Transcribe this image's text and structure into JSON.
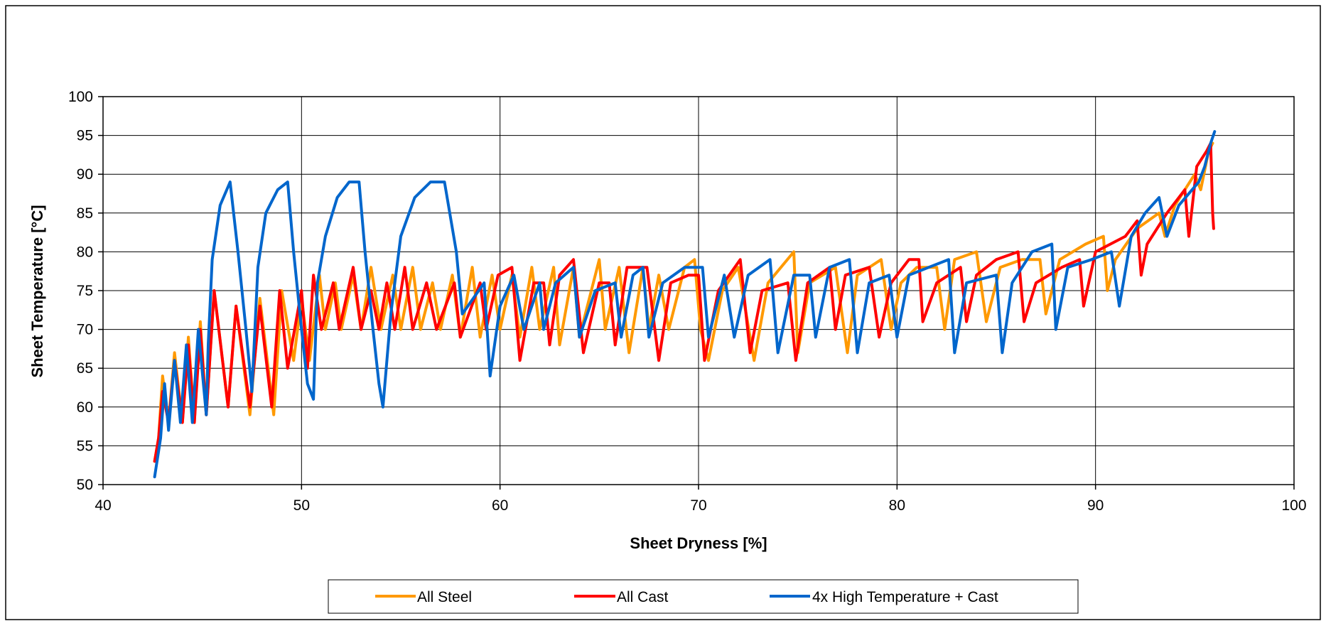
{
  "chart_data": {
    "type": "line",
    "title": "",
    "xlabel": "Sheet Dryness [%]",
    "ylabel": "Sheet Temperature [°C]",
    "xlim": [
      40,
      100
    ],
    "ylim": [
      50,
      100
    ],
    "x_ticks": [
      40,
      50,
      60,
      70,
      80,
      90,
      100
    ],
    "y_ticks": [
      50,
      55,
      60,
      65,
      70,
      75,
      80,
      85,
      90,
      95,
      100
    ],
    "grid": true,
    "legend_position": "bottom",
    "series": [
      {
        "name": "All Steel",
        "color": "#FF9900",
        "points": [
          [
            42.6,
            53
          ],
          [
            42.8,
            56
          ],
          [
            43.0,
            64
          ],
          [
            43.3,
            58
          ],
          [
            43.6,
            67
          ],
          [
            44.0,
            58
          ],
          [
            44.3,
            69
          ],
          [
            44.6,
            58
          ],
          [
            44.9,
            71
          ],
          [
            45.2,
            59
          ],
          [
            45.6,
            75
          ],
          [
            46.3,
            60
          ],
          [
            46.7,
            73
          ],
          [
            47.4,
            59
          ],
          [
            47.9,
            74
          ],
          [
            48.6,
            59
          ],
          [
            49.0,
            75
          ],
          [
            49.6,
            66
          ],
          [
            50.0,
            74
          ],
          [
            50.4,
            66
          ],
          [
            50.9,
            77
          ],
          [
            51.2,
            70
          ],
          [
            51.7,
            76
          ],
          [
            52.0,
            70
          ],
          [
            52.6,
            77
          ],
          [
            53.0,
            70
          ],
          [
            53.5,
            78
          ],
          [
            54.0,
            70
          ],
          [
            54.6,
            77
          ],
          [
            55.0,
            70
          ],
          [
            55.6,
            78
          ],
          [
            56.0,
            70
          ],
          [
            56.6,
            76
          ],
          [
            57.0,
            70
          ],
          [
            57.6,
            77
          ],
          [
            58.0,
            69
          ],
          [
            58.6,
            78
          ],
          [
            59.0,
            69
          ],
          [
            59.6,
            77
          ],
          [
            60.0,
            70
          ],
          [
            60.6,
            77
          ],
          [
            61.0,
            69
          ],
          [
            61.6,
            78
          ],
          [
            62.0,
            70
          ],
          [
            62.7,
            78
          ],
          [
            63.0,
            68
          ],
          [
            63.7,
            78
          ],
          [
            64.0,
            69
          ],
          [
            65.0,
            79
          ],
          [
            65.3,
            70
          ],
          [
            66.0,
            78
          ],
          [
            66.5,
            67
          ],
          [
            67.2,
            78
          ],
          [
            67.5,
            70
          ],
          [
            68.0,
            77
          ],
          [
            68.5,
            70
          ],
          [
            69.3,
            78
          ],
          [
            69.8,
            79
          ],
          [
            70.1,
            70
          ],
          [
            70.5,
            66
          ],
          [
            71.2,
            75
          ],
          [
            72.0,
            78
          ],
          [
            72.8,
            66
          ],
          [
            73.5,
            76
          ],
          [
            74.8,
            80
          ],
          [
            75.0,
            67
          ],
          [
            75.6,
            76
          ],
          [
            76.9,
            78
          ],
          [
            77.5,
            67
          ],
          [
            78.0,
            77
          ],
          [
            79.2,
            79
          ],
          [
            79.7,
            70
          ],
          [
            80.2,
            76
          ],
          [
            81.0,
            78
          ],
          [
            82.0,
            78
          ],
          [
            82.4,
            70
          ],
          [
            82.9,
            79
          ],
          [
            84.0,
            80
          ],
          [
            84.5,
            71
          ],
          [
            85.2,
            78
          ],
          [
            86.3,
            79
          ],
          [
            87.2,
            79
          ],
          [
            87.5,
            72
          ],
          [
            88.2,
            79
          ],
          [
            89.5,
            81
          ],
          [
            90.4,
            82
          ],
          [
            90.6,
            75
          ],
          [
            91.0,
            79
          ],
          [
            92.1,
            83
          ],
          [
            93.2,
            85
          ],
          [
            93.5,
            82
          ],
          [
            94.0,
            86
          ],
          [
            95.0,
            90
          ],
          [
            95.3,
            88
          ],
          [
            95.7,
            93
          ],
          [
            95.9,
            94
          ]
        ]
      },
      {
        "name": "All Cast",
        "color": "#FF0000",
        "points": [
          [
            42.6,
            53
          ],
          [
            42.8,
            56
          ],
          [
            43.0,
            62
          ],
          [
            43.3,
            58
          ],
          [
            43.6,
            66
          ],
          [
            44.0,
            58
          ],
          [
            44.3,
            68
          ],
          [
            44.6,
            58
          ],
          [
            44.9,
            70
          ],
          [
            45.2,
            59
          ],
          [
            45.6,
            75
          ],
          [
            46.3,
            60
          ],
          [
            46.7,
            73
          ],
          [
            47.4,
            60
          ],
          [
            47.9,
            73
          ],
          [
            48.5,
            60
          ],
          [
            48.9,
            75
          ],
          [
            49.3,
            65
          ],
          [
            50.0,
            75
          ],
          [
            50.3,
            65
          ],
          [
            50.6,
            77
          ],
          [
            51.0,
            70
          ],
          [
            51.6,
            76
          ],
          [
            51.9,
            70
          ],
          [
            52.6,
            78
          ],
          [
            53.0,
            70
          ],
          [
            53.5,
            75
          ],
          [
            53.9,
            70
          ],
          [
            54.3,
            76
          ],
          [
            54.7,
            70
          ],
          [
            55.2,
            78
          ],
          [
            55.6,
            70
          ],
          [
            56.3,
            76
          ],
          [
            56.8,
            70
          ],
          [
            57.7,
            76
          ],
          [
            58.0,
            69
          ],
          [
            59.0,
            76
          ],
          [
            59.3,
            70
          ],
          [
            59.9,
            77
          ],
          [
            60.6,
            78
          ],
          [
            61.0,
            66
          ],
          [
            61.7,
            76
          ],
          [
            62.2,
            76
          ],
          [
            62.5,
            68
          ],
          [
            63.0,
            77
          ],
          [
            63.7,
            79
          ],
          [
            64.2,
            67
          ],
          [
            65.0,
            76
          ],
          [
            65.5,
            76
          ],
          [
            65.8,
            68
          ],
          [
            66.4,
            78
          ],
          [
            67.4,
            78
          ],
          [
            68.0,
            66
          ],
          [
            68.6,
            76
          ],
          [
            69.5,
            77
          ],
          [
            70.0,
            77
          ],
          [
            70.3,
            66
          ],
          [
            71.0,
            75
          ],
          [
            72.1,
            79
          ],
          [
            72.6,
            67
          ],
          [
            73.2,
            75
          ],
          [
            74.5,
            76
          ],
          [
            74.9,
            66
          ],
          [
            75.5,
            76
          ],
          [
            76.6,
            78
          ],
          [
            76.9,
            70
          ],
          [
            77.4,
            77
          ],
          [
            78.6,
            78
          ],
          [
            79.1,
            69
          ],
          [
            79.7,
            76
          ],
          [
            80.6,
            79
          ],
          [
            81.1,
            79
          ],
          [
            81.3,
            71
          ],
          [
            82.0,
            76
          ],
          [
            83.2,
            78
          ],
          [
            83.5,
            71
          ],
          [
            84.0,
            77
          ],
          [
            85.0,
            79
          ],
          [
            86.1,
            80
          ],
          [
            86.4,
            71
          ],
          [
            87.0,
            76
          ],
          [
            88.3,
            78
          ],
          [
            89.2,
            79
          ],
          [
            89.4,
            73
          ],
          [
            90.0,
            80
          ],
          [
            91.5,
            82
          ],
          [
            92.1,
            84
          ],
          [
            92.3,
            77
          ],
          [
            92.6,
            81
          ],
          [
            93.6,
            85
          ],
          [
            94.5,
            88
          ],
          [
            94.7,
            82
          ],
          [
            95.1,
            91
          ],
          [
            95.6,
            93
          ],
          [
            95.8,
            94
          ],
          [
            95.9,
            85
          ],
          [
            95.95,
            83
          ]
        ]
      },
      {
        "name": "4x High Temperature + Cast",
        "color": "#0066CC",
        "points": [
          [
            42.6,
            51
          ],
          [
            42.9,
            56
          ],
          [
            43.1,
            63
          ],
          [
            43.3,
            57
          ],
          [
            43.6,
            66
          ],
          [
            43.9,
            58
          ],
          [
            44.2,
            68
          ],
          [
            44.5,
            58
          ],
          [
            44.8,
            70
          ],
          [
            45.2,
            59
          ],
          [
            45.3,
            68
          ],
          [
            45.5,
            79
          ],
          [
            45.9,
            86
          ],
          [
            46.4,
            89
          ],
          [
            46.8,
            80
          ],
          [
            47.2,
            70
          ],
          [
            47.5,
            62
          ],
          [
            47.8,
            78
          ],
          [
            48.2,
            85
          ],
          [
            48.8,
            88
          ],
          [
            49.3,
            89
          ],
          [
            49.6,
            80
          ],
          [
            50.0,
            70
          ],
          [
            50.3,
            63
          ],
          [
            50.6,
            61
          ],
          [
            50.8,
            76
          ],
          [
            51.2,
            82
          ],
          [
            51.8,
            87
          ],
          [
            52.4,
            89
          ],
          [
            52.9,
            89
          ],
          [
            53.2,
            80
          ],
          [
            53.6,
            70
          ],
          [
            53.9,
            63
          ],
          [
            54.1,
            60
          ],
          [
            54.5,
            72
          ],
          [
            55.0,
            82
          ],
          [
            55.7,
            87
          ],
          [
            56.5,
            89
          ],
          [
            57.2,
            89
          ],
          [
            57.8,
            80
          ],
          [
            58.1,
            72
          ],
          [
            59.2,
            76
          ],
          [
            59.5,
            64
          ],
          [
            60.0,
            73
          ],
          [
            60.7,
            77
          ],
          [
            61.2,
            70
          ],
          [
            62.0,
            76
          ],
          [
            62.2,
            70
          ],
          [
            62.8,
            76
          ],
          [
            63.7,
            78
          ],
          [
            64.0,
            69
          ],
          [
            64.8,
            75
          ],
          [
            65.8,
            76
          ],
          [
            66.1,
            69
          ],
          [
            66.7,
            77
          ],
          [
            67.2,
            78
          ],
          [
            67.5,
            69
          ],
          [
            68.2,
            76
          ],
          [
            69.3,
            78
          ],
          [
            70.2,
            78
          ],
          [
            70.5,
            69
          ],
          [
            71.3,
            77
          ],
          [
            71.8,
            69
          ],
          [
            72.5,
            77
          ],
          [
            73.6,
            79
          ],
          [
            74.0,
            67
          ],
          [
            74.8,
            77
          ],
          [
            75.6,
            77
          ],
          [
            75.9,
            69
          ],
          [
            76.6,
            78
          ],
          [
            77.6,
            79
          ],
          [
            78.0,
            67
          ],
          [
            78.6,
            76
          ],
          [
            79.6,
            77
          ],
          [
            80.0,
            69
          ],
          [
            80.6,
            77
          ],
          [
            81.6,
            78
          ],
          [
            82.6,
            79
          ],
          [
            82.9,
            67
          ],
          [
            83.5,
            76
          ],
          [
            85.0,
            77
          ],
          [
            85.3,
            67
          ],
          [
            85.8,
            76
          ],
          [
            86.8,
            80
          ],
          [
            87.8,
            81
          ],
          [
            88.0,
            70
          ],
          [
            88.6,
            78
          ],
          [
            89.8,
            79
          ],
          [
            90.8,
            80
          ],
          [
            91.2,
            73
          ],
          [
            91.8,
            82
          ],
          [
            92.5,
            85
          ],
          [
            93.2,
            87
          ],
          [
            93.6,
            82
          ],
          [
            94.2,
            86
          ],
          [
            95.2,
            89
          ],
          [
            95.5,
            91
          ],
          [
            95.8,
            94
          ],
          [
            96.0,
            95.5
          ]
        ]
      }
    ]
  }
}
